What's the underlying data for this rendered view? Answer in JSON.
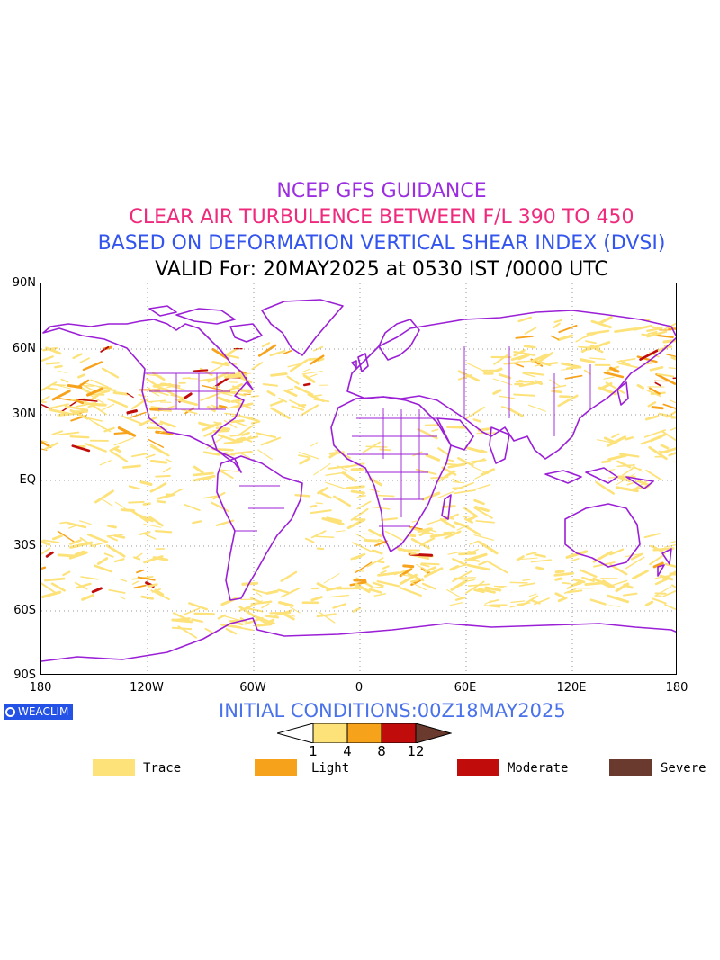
{
  "titles": {
    "line1": "NCEP GFS GUIDANCE",
    "line2": "CLEAR AIR TURBULENCE BETWEEN F/L 390 TO 450",
    "line3": "BASED ON DEFORMATION VERTICAL SHEAR INDEX (DVSI)",
    "line4": "VALID For: 20MAY2025 at 0530 IST /0000 UTC"
  },
  "axes": {
    "lat_labels": [
      "90N",
      "60N",
      "30N",
      "EQ",
      "30S",
      "60S",
      "90S"
    ],
    "lon_labels": [
      "180",
      "120W",
      "60W",
      "0",
      "60E",
      "120E",
      "180"
    ]
  },
  "logo": {
    "text": "WEACLIM"
  },
  "initial_conditions": "INITIAL CONDITIONS:00Z18MAY2025",
  "colorbar": {
    "ticks": [
      "1",
      "4",
      "8",
      "12"
    ],
    "colors": [
      "#ffffff",
      "#fde27a",
      "#f7a21b",
      "#c10c0c",
      "#6b3a2e"
    ]
  },
  "legend": [
    {
      "label": "Trace",
      "color": "#fde27a"
    },
    {
      "label": "Light",
      "color": "#f7a21b"
    },
    {
      "label": "Moderate",
      "color": "#c10c0c"
    },
    {
      "label": "Severe",
      "color": "#6b3a2e"
    }
  ],
  "map_colors": {
    "coastline": "#9b1fd6",
    "trace": "#fde27a",
    "light": "#f7a21b",
    "moderate": "#c10c0c"
  }
}
